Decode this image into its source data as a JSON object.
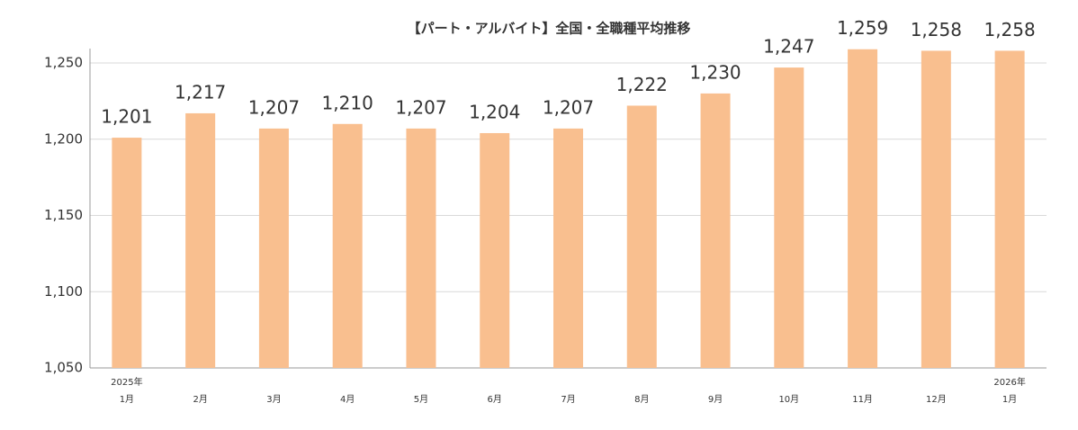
{
  "chart_data": {
    "type": "bar",
    "title": "【パート・アルバイト】全国・全職種平均推移",
    "categories": [
      "1月",
      "2月",
      "3月",
      "4月",
      "5月",
      "6月",
      "7月",
      "8月",
      "9月",
      "10月",
      "11月",
      "12月",
      "1月"
    ],
    "category_years": [
      "2025年",
      null,
      null,
      null,
      null,
      null,
      null,
      null,
      null,
      null,
      null,
      null,
      "2026年"
    ],
    "values": [
      1201,
      1217,
      1207,
      1210,
      1207,
      1204,
      1207,
      1222,
      1230,
      1247,
      1259,
      1258,
      1258
    ],
    "value_labels": [
      "1,201",
      "1,217",
      "1,207",
      "1,210",
      "1,207",
      "1,204",
      "1,207",
      "1,222",
      "1,230",
      "1,247",
      "1,259",
      "1,258",
      "1,258"
    ],
    "color": "#f9bf8f",
    "ylim": [
      1050,
      1250
    ],
    "yticks": [
      {
        "value": 1050,
        "label": "1,050"
      },
      {
        "value": 1100,
        "label": "1,100"
      },
      {
        "value": 1150,
        "label": "1,150"
      },
      {
        "value": 1200,
        "label": "1,200"
      },
      {
        "value": 1250,
        "label": "1,250"
      }
    ],
    "grid": true
  }
}
